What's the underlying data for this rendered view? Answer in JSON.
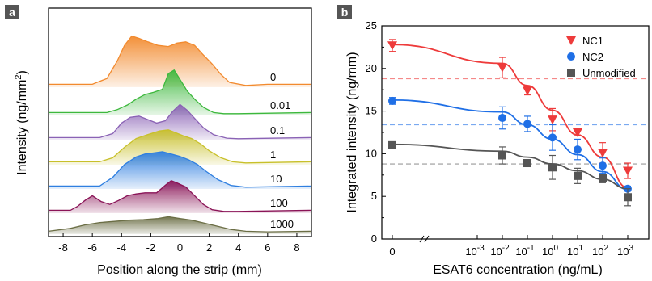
{
  "panels": {
    "a": {
      "label": "a"
    },
    "b": {
      "label": "b"
    }
  },
  "chart_data": [
    {
      "type": "area",
      "panel": "a",
      "xlabel": "Position along the strip (mm)",
      "ylabel": "Intensity (ng/mm²)",
      "xlim": [
        -9,
        9
      ],
      "xticks": [
        "-8",
        "-6",
        "-4",
        "-2",
        "0",
        "2",
        "4",
        "6",
        "8"
      ],
      "series": [
        {
          "name": "0",
          "color": "#f28a2e",
          "x": [
            -9,
            -6,
            -5,
            -4.3,
            -3.8,
            -3.3,
            -2.8,
            -2.2,
            -1.5,
            -0.8,
            -0.2,
            0.4,
            1.0,
            1.5,
            2.2,
            2.8,
            3.4,
            4.5,
            6,
            9
          ],
          "y": [
            0.05,
            0.05,
            0.15,
            0.45,
            0.72,
            0.88,
            0.84,
            0.78,
            0.72,
            0.7,
            0.76,
            0.78,
            0.72,
            0.58,
            0.4,
            0.22,
            0.08,
            0.03,
            0.05,
            0.05
          ]
        },
        {
          "name": "0.01",
          "color": "#3db83d",
          "x": [
            -9,
            -5,
            -4.3,
            -3.6,
            -3,
            -2.4,
            -1.8,
            -1.2,
            -0.8,
            -0.4,
            0,
            0.5,
            1,
            1.6,
            2.3,
            3,
            4,
            9
          ],
          "y": [
            0.05,
            0.05,
            0.1,
            0.18,
            0.28,
            0.36,
            0.4,
            0.45,
            0.72,
            0.78,
            0.62,
            0.42,
            0.28,
            0.14,
            0.05,
            0.03,
            0.03,
            0.05
          ]
        },
        {
          "name": "0.1",
          "color": "#8a62b5",
          "x": [
            -9,
            -5.5,
            -4.6,
            -4,
            -3.4,
            -2.8,
            -2.2,
            -1.6,
            -1,
            -0.5,
            0,
            0.5,
            1,
            1.6,
            2.3,
            3.2,
            4,
            9
          ],
          "y": [
            0.05,
            0.05,
            0.12,
            0.3,
            0.4,
            0.42,
            0.36,
            0.3,
            0.34,
            0.5,
            0.62,
            0.52,
            0.38,
            0.22,
            0.1,
            0.04,
            0.03,
            0.05
          ]
        },
        {
          "name": "1",
          "color": "#c8c02a",
          "x": [
            -9,
            -5.5,
            -4.6,
            -3.8,
            -3,
            -2.2,
            -1.4,
            -0.8,
            -0.3,
            0.2,
            0.8,
            1.4,
            2,
            2.8,
            3.6,
            4.5,
            9
          ],
          "y": [
            0.05,
            0.05,
            0.12,
            0.3,
            0.45,
            0.52,
            0.58,
            0.6,
            0.55,
            0.5,
            0.45,
            0.36,
            0.24,
            0.12,
            0.05,
            0.03,
            0.05
          ]
        },
        {
          "name": "10",
          "color": "#2f7fe0",
          "x": [
            -9,
            -5.5,
            -4.6,
            -3.8,
            -3,
            -2.4,
            -1.8,
            -1.2,
            -0.6,
            0,
            0.6,
            1.2,
            1.8,
            2.6,
            3.5,
            4.5,
            9
          ],
          "y": [
            0.05,
            0.05,
            0.2,
            0.42,
            0.55,
            0.6,
            0.62,
            0.64,
            0.6,
            0.56,
            0.5,
            0.42,
            0.3,
            0.16,
            0.06,
            0.03,
            0.05
          ]
        },
        {
          "name": "100",
          "color": "#8a1457",
          "x": [
            -9,
            -7.5,
            -7,
            -6.5,
            -6,
            -5.4,
            -4.8,
            -4.2,
            -3.6,
            -3,
            -2.4,
            -1.6,
            -1,
            -0.6,
            -0.2,
            0.4,
            1,
            1.6,
            2.2,
            3,
            4,
            9
          ],
          "y": [
            0.05,
            0.05,
            0.12,
            0.22,
            0.3,
            0.2,
            0.15,
            0.22,
            0.3,
            0.33,
            0.35,
            0.35,
            0.48,
            0.56,
            0.52,
            0.45,
            0.3,
            0.15,
            0.06,
            0.03,
            0.03,
            0.05
          ]
        },
        {
          "name": "1000",
          "color": "#6b6e45",
          "x": [
            -9,
            -7.5,
            -6.5,
            -5.5,
            -4.5,
            -3.5,
            -2.5,
            -1.5,
            -0.8,
            0,
            0.8,
            1.5,
            2.5,
            3.5,
            4.5,
            6,
            9
          ],
          "y": [
            0.05,
            0.1,
            0.16,
            0.2,
            0.22,
            0.24,
            0.25,
            0.27,
            0.3,
            0.27,
            0.24,
            0.2,
            0.14,
            0.08,
            0.05,
            0.04,
            0.05
          ]
        }
      ]
    },
    {
      "type": "scatter",
      "panel": "b",
      "xlabel": "ESAT6 concentration (ng/mL)",
      "ylabel": "Integrated intensity (ng/mm)",
      "ylim": [
        0,
        25
      ],
      "yticks": [
        "0",
        "5",
        "10",
        "15",
        "20",
        "25"
      ],
      "xticks": [
        "0",
        "10-3",
        "10-2",
        "10-1",
        "100",
        "101",
        "102",
        "103"
      ],
      "xtick_base": "10",
      "xtick_exponents": [
        "-3",
        "-2",
        "-1",
        "0",
        "1",
        "2",
        "3"
      ],
      "x_categories": [
        0,
        0.01,
        0.1,
        1,
        10,
        100,
        1000
      ],
      "series": [
        {
          "name": "NC1",
          "color": "#ee3b3b",
          "marker": "triangle-down",
          "x": [
            0,
            0.01,
            0.1,
            1,
            10,
            100,
            1000
          ],
          "y": [
            22.7,
            20.1,
            17.4,
            14.0,
            12.5,
            10.1,
            8.0
          ],
          "err": [
            0.7,
            1.2,
            0.5,
            1.3,
            0.3,
            1.2,
            0.9
          ],
          "fit": [
            22.8,
            20.6,
            18.0,
            15.1,
            12.2,
            9.6,
            6.0
          ],
          "threshold": 18.8
        },
        {
          "name": "NC2",
          "color": "#1f6fe6",
          "marker": "circle",
          "x": [
            0,
            0.01,
            0.1,
            1,
            10,
            100,
            1000
          ],
          "y": [
            16.2,
            14.2,
            13.5,
            11.9,
            10.5,
            8.6,
            5.9
          ],
          "err": [
            0.4,
            1.3,
            0.9,
            1.5,
            1.2,
            0.9,
            0.3
          ],
          "fit": [
            16.3,
            14.9,
            13.4,
            11.7,
            9.9,
            7.9,
            5.8
          ],
          "threshold": 13.4
        },
        {
          "name": "Unmodified",
          "color": "#555555",
          "marker": "square",
          "x": [
            0,
            0.01,
            0.1,
            1,
            10,
            100,
            1000
          ],
          "y": [
            11.0,
            9.8,
            8.9,
            8.4,
            7.4,
            7.1,
            4.9
          ],
          "err": [
            0.4,
            1.0,
            0.3,
            1.4,
            0.9,
            0.5,
            1.0
          ],
          "fit": [
            11.1,
            10.3,
            9.6,
            8.8,
            8.0,
            7.0,
            5.9
          ],
          "threshold": 8.8
        }
      ]
    }
  ]
}
